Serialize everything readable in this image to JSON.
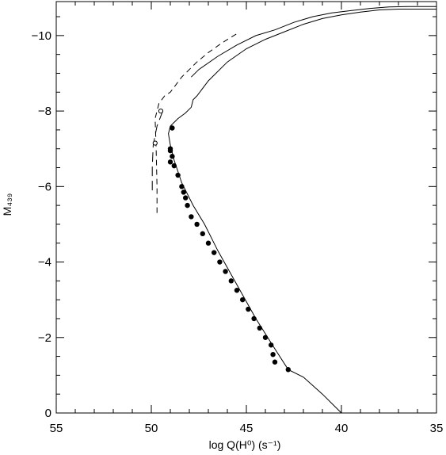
{
  "chart_data": {
    "type": "line",
    "xlabel": "log Q(H⁰) (s⁻¹)",
    "ylabel": "M₄₃₉",
    "xlim": [
      55,
      35
    ],
    "ylim": [
      0,
      -10.9
    ],
    "x_ticks": [
      "55",
      "50",
      "45",
      "40",
      "35"
    ],
    "y_ticks": [
      "0",
      "−2",
      "−4",
      "−6",
      "−8",
      "−10"
    ],
    "grid": false,
    "series": [
      {
        "style": "solid",
        "x": [
          40.0,
          41.0,
          42.0,
          42.8,
          43.5,
          44.5,
          45.5,
          46.5,
          47.2,
          47.8,
          48.4,
          48.8,
          49.0,
          49.1,
          49.0,
          48.6,
          48.2,
          47.9,
          47.8,
          47.6,
          47.0,
          46.0,
          45.0,
          44.0,
          43.0,
          42.0,
          41.0,
          40.0,
          39.0,
          38.0,
          37.0,
          36.0,
          35.0
        ],
        "y": [
          0.0,
          -0.5,
          -0.95,
          -1.15,
          -1.7,
          -2.5,
          -3.4,
          -4.3,
          -5.0,
          -5.5,
          -6.1,
          -6.7,
          -7.1,
          -7.4,
          -7.6,
          -7.8,
          -7.95,
          -8.1,
          -8.3,
          -8.4,
          -8.8,
          -9.3,
          -9.65,
          -9.9,
          -10.1,
          -10.3,
          -10.45,
          -10.55,
          -10.62,
          -10.68,
          -10.7,
          -10.7,
          -10.7
        ]
      },
      {
        "style": "solid",
        "x": [
          47.9,
          47.5,
          46.5,
          45.5,
          44.5,
          43.5,
          42.5,
          41.5,
          40.5,
          39.5,
          38.5,
          37.5,
          36.5,
          35.0
        ],
        "y": [
          -8.9,
          -9.1,
          -9.45,
          -9.75,
          -10.0,
          -10.15,
          -10.35,
          -10.5,
          -10.6,
          -10.66,
          -10.72,
          -10.76,
          -10.77,
          -10.77
        ]
      },
      {
        "style": "dashed",
        "x": [
          49.7,
          49.7,
          49.75,
          49.8,
          49.6,
          49.3,
          49.0,
          48.4,
          47.6,
          47.0,
          46.3,
          45.5
        ],
        "y": [
          -5.3,
          -6.0,
          -7.1,
          -7.8,
          -8.2,
          -8.4,
          -8.5,
          -8.9,
          -9.3,
          -9.55,
          -9.8,
          -10.05
        ]
      },
      {
        "style": "long-dashed",
        "x": [
          49.95,
          49.95,
          49.9,
          49.7,
          49.4
        ],
        "y": [
          -5.9,
          -6.5,
          -7.1,
          -7.6,
          -8.0
        ]
      }
    ],
    "filled_points": {
      "x": [
        42.8,
        43.5,
        43.6,
        43.7,
        44.0,
        44.3,
        44.6,
        44.9,
        45.2,
        45.5,
        45.8,
        46.1,
        46.4,
        46.7,
        47.0,
        47.3,
        47.6,
        47.9,
        48.1,
        48.2,
        48.3,
        48.4,
        48.6,
        48.8,
        48.9,
        49.0,
        49.0,
        49.0,
        48.9
      ],
      "y": [
        -1.15,
        -1.35,
        -1.55,
        -1.8,
        -2.0,
        -2.25,
        -2.5,
        -2.75,
        -3.0,
        -3.25,
        -3.5,
        -3.75,
        -4.0,
        -4.25,
        -4.5,
        -4.75,
        -5.0,
        -5.2,
        -5.5,
        -5.7,
        -5.85,
        -6.0,
        -6.3,
        -6.55,
        -6.8,
        -6.95,
        -6.65,
        -7.0,
        -7.55
      ]
    },
    "open_points": {
      "x": [
        49.8,
        49.5
      ],
      "y": [
        -7.15,
        -8.0
      ]
    }
  }
}
